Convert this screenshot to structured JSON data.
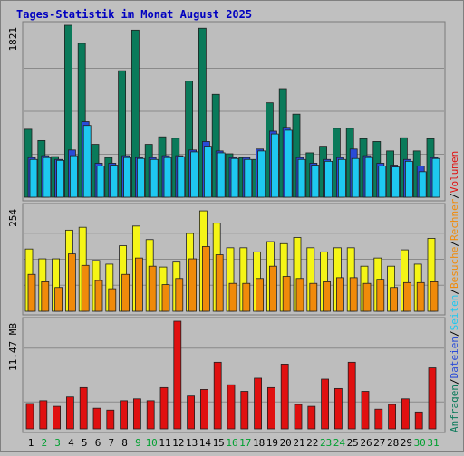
{
  "title": "Tages-Statistik im Monat August 2025",
  "colors": {
    "background": "#c0c0c0",
    "panel": "#bdbdbd",
    "title": "#0000c0",
    "anfragen": "#0a7a5a",
    "dateien": "#2a4bd7",
    "seiten": "#1ec8f0",
    "besuche": "#f5f516",
    "rechner": "#f08a0a",
    "volumen": "#e01010",
    "weekday_label": "#000000",
    "weekend_label": "#00a030"
  },
  "chart_data": [
    {
      "type": "bar",
      "panel": "top",
      "ylabel_value": "1821",
      "ylim": [
        0,
        1821
      ],
      "series": [
        {
          "name": "Anfragen",
          "values": [
            720,
            600,
            430,
            1821,
            1630,
            560,
            420,
            1340,
            1770,
            560,
            640,
            625,
            1230,
            1790,
            1090,
            460,
            420,
            400,
            1000,
            1150,
            880,
            470,
            540,
            730,
            730,
            620,
            590,
            490,
            630,
            490,
            620
          ]
        },
        {
          "name": "Dateien",
          "values": [
            420,
            440,
            400,
            500,
            800,
            360,
            360,
            440,
            420,
            420,
            440,
            440,
            500,
            590,
            490,
            420,
            420,
            510,
            700,
            740,
            420,
            360,
            400,
            420,
            510,
            440,
            360,
            340,
            400,
            330,
            420
          ]
        },
        {
          "name": "Seiten",
          "values": [
            400,
            420,
            390,
            440,
            760,
            330,
            340,
            420,
            410,
            400,
            420,
            430,
            480,
            540,
            470,
            410,
            400,
            490,
            670,
            710,
            400,
            340,
            380,
            400,
            410,
            420,
            330,
            320,
            380,
            270,
            410
          ]
        }
      ],
      "legend": [
        "Anfragen",
        "Dateien",
        "Seiten"
      ]
    },
    {
      "type": "bar",
      "panel": "middle",
      "ylabel_value": "254",
      "ylim": [
        0,
        254
      ],
      "series": [
        {
          "name": "Besuche",
          "values": [
            152,
            128,
            128,
            198,
            205,
            124,
            115,
            160,
            208,
            175,
            108,
            120,
            190,
            245,
            215,
            155,
            155,
            145,
            170,
            165,
            180,
            155,
            145,
            155,
            155,
            110,
            130,
            110,
            150,
            115,
            178
          ]
        },
        {
          "name": "Rechner",
          "values": [
            90,
            72,
            58,
            140,
            112,
            75,
            55,
            90,
            130,
            110,
            65,
            80,
            128,
            158,
            138,
            68,
            68,
            80,
            110,
            85,
            80,
            68,
            72,
            82,
            82,
            68,
            78,
            58,
            70,
            70,
            72
          ]
        }
      ],
      "legend": [
        "Besuche",
        "Rechner"
      ]
    },
    {
      "type": "bar",
      "panel": "bottom",
      "ylabel_value": "11.47 MB",
      "ylim": [
        0,
        11.47
      ],
      "series": [
        {
          "name": "Volumen",
          "values": [
            2.7,
            3.0,
            2.4,
            3.4,
            4.4,
            2.2,
            2.0,
            3.0,
            3.2,
            3.0,
            4.4,
            11.47,
            3.5,
            4.2,
            7.1,
            4.7,
            4.0,
            5.4,
            4.4,
            6.9,
            2.6,
            2.4,
            5.3,
            4.3,
            7.1,
            4.0,
            2.1,
            2.6,
            3.2,
            1.8,
            6.5
          ]
        }
      ],
      "legend": [
        "Volumen"
      ]
    }
  ],
  "right_labels": {
    "top": [
      "Anfragen",
      "/",
      "Dateien",
      "/",
      "Seiten",
      "/",
      "Besuche",
      "/",
      "Rechner",
      "/",
      "Volumen"
    ]
  },
  "days": [
    "1",
    "2",
    "3",
    "4",
    "5",
    "6",
    "7",
    "8",
    "9",
    "10",
    "11",
    "12",
    "13",
    "14",
    "15",
    "16",
    "17",
    "18",
    "19",
    "20",
    "21",
    "22",
    "23",
    "24",
    "25",
    "26",
    "27",
    "28",
    "29",
    "30",
    "31"
  ],
  "weekend_days": [
    "2",
    "3",
    "9",
    "10",
    "16",
    "17",
    "23",
    "24",
    "30",
    "31"
  ]
}
